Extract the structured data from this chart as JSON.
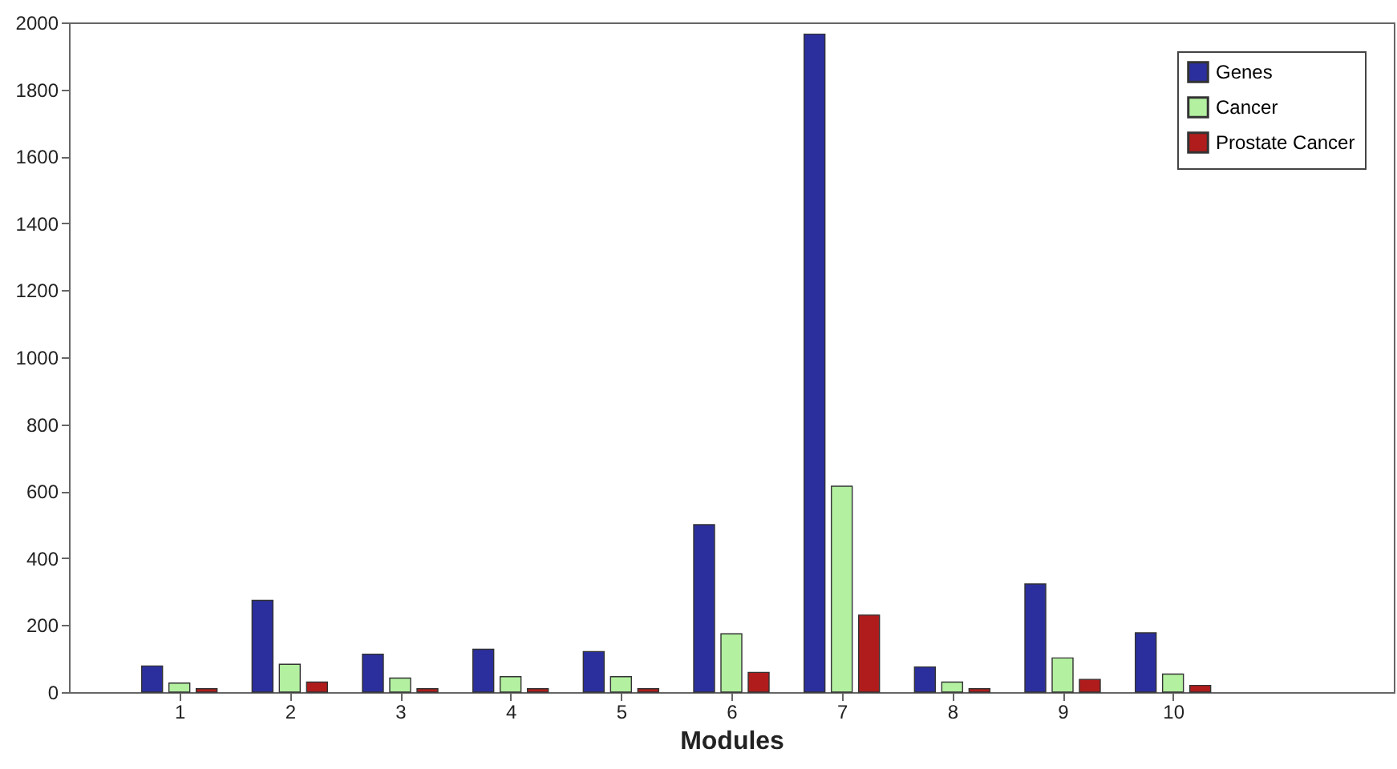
{
  "chart_data": {
    "type": "bar",
    "xlabel": "Modules",
    "x": [
      1,
      2,
      3,
      4,
      5,
      6,
      7,
      8,
      9,
      10
    ],
    "xlim": [
      0,
      12
    ],
    "xticks": [
      1,
      2,
      3,
      4,
      5,
      6,
      7,
      8,
      9,
      10
    ],
    "ylim": [
      0,
      2000
    ],
    "yticks": [
      0,
      200,
      400,
      600,
      800,
      1000,
      1200,
      1400,
      1600,
      1800,
      2000
    ],
    "grid": false,
    "legend": "top right",
    "series": [
      {
        "name": "Genes",
        "color": "#2b2f9e",
        "values": [
          78,
          274,
          113,
          128,
          121,
          500,
          1965,
          75,
          323,
          177
        ]
      },
      {
        "name": "Cancer",
        "color": "#b3f0a0",
        "values": [
          27,
          83,
          42,
          46,
          46,
          174,
          615,
          30,
          102,
          54
        ]
      },
      {
        "name": "Prostate Cancer",
        "color": "#b01c1c",
        "values": [
          10,
          30,
          10,
          10,
          10,
          59,
          230,
          10,
          38,
          20
        ]
      }
    ]
  }
}
